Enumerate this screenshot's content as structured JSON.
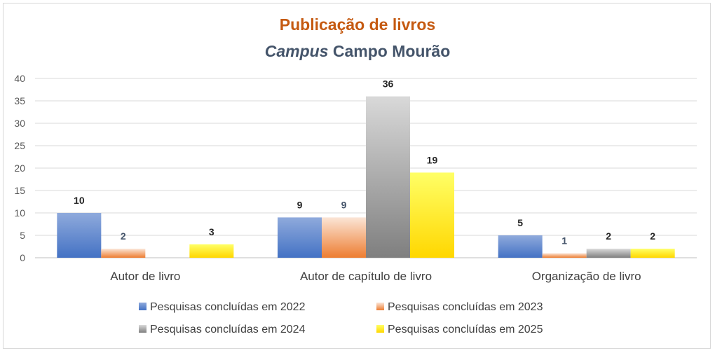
{
  "chart_data": {
    "type": "bar",
    "title": "Publicação de livros",
    "subtitle_italic": "Campus",
    "subtitle_rest": "Campo Mourão",
    "categories": [
      "Autor de livro",
      "Autor de capítulo de livro",
      "Organização de livro"
    ],
    "series": [
      {
        "name": "Pesquisas concluídas em 2022",
        "values": [
          10,
          9,
          5
        ],
        "color": "#4472c4",
        "light": "#8faadc",
        "label_color": "#262626"
      },
      {
        "name": "Pesquisas concluídas em 2023",
        "values": [
          2,
          9,
          1
        ],
        "color": "#ed7d31",
        "light": "#fbe5d6",
        "label_color": "#44546a"
      },
      {
        "name": "Pesquisas concluídas em 2024",
        "values": [
          null,
          36,
          2
        ],
        "color": "#7f7f7f",
        "light": "#d9d9d9",
        "label_color": "#262626"
      },
      {
        "name": "Pesquisas concluídas em 2025",
        "values": [
          3,
          19,
          2
        ],
        "color": "#ffd700",
        "light": "#ffff66",
        "label_color": "#262626"
      }
    ],
    "y_ticks": [
      0,
      5,
      10,
      15,
      20,
      25,
      30,
      35,
      40
    ],
    "ylim": [
      0,
      40
    ],
    "grid": true,
    "legend_position": "bottom"
  }
}
